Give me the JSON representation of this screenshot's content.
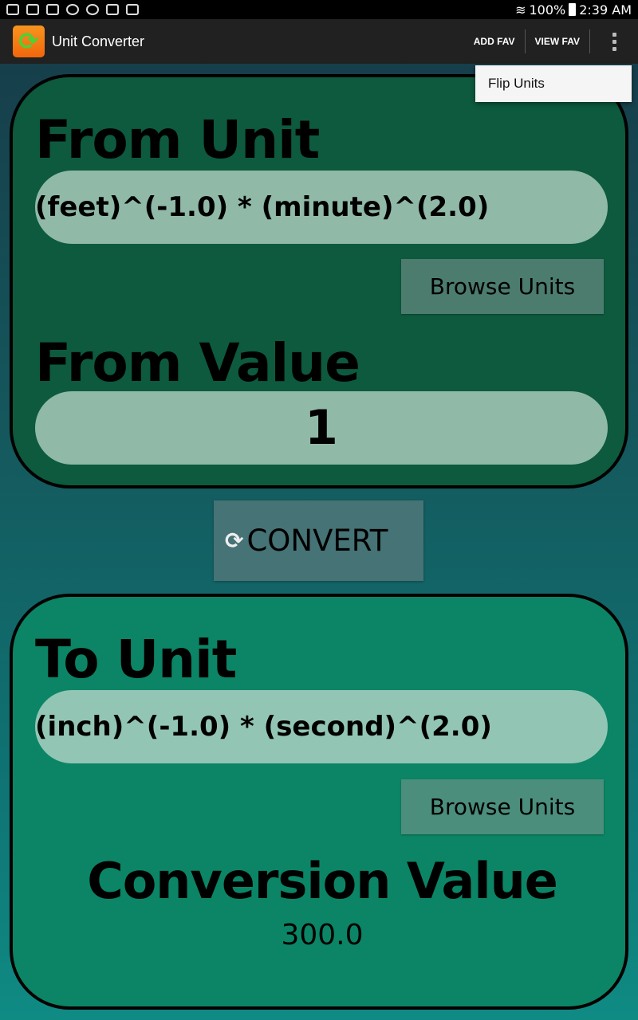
{
  "status_bar": {
    "battery": "100%",
    "time": "2:39 AM"
  },
  "action_bar": {
    "title": "Unit Converter",
    "add_fav": "ADD FAV",
    "view_fav": "VIEW FAV"
  },
  "overflow_menu": {
    "items": [
      "Flip Units"
    ]
  },
  "from_section": {
    "unit_heading": "From Unit",
    "unit_value": "(feet)^(-1.0) * (minute)^(2.0)",
    "browse_label": "Browse Units",
    "value_heading": "From Value",
    "value": "1"
  },
  "convert": {
    "label": "CONVERT"
  },
  "to_section": {
    "unit_heading": "To Unit",
    "unit_value": "(inch)^(-1.0) * (second)^(2.0)",
    "browse_label": "Browse Units",
    "result_heading": "Conversion Value",
    "result_value": "300.0"
  }
}
